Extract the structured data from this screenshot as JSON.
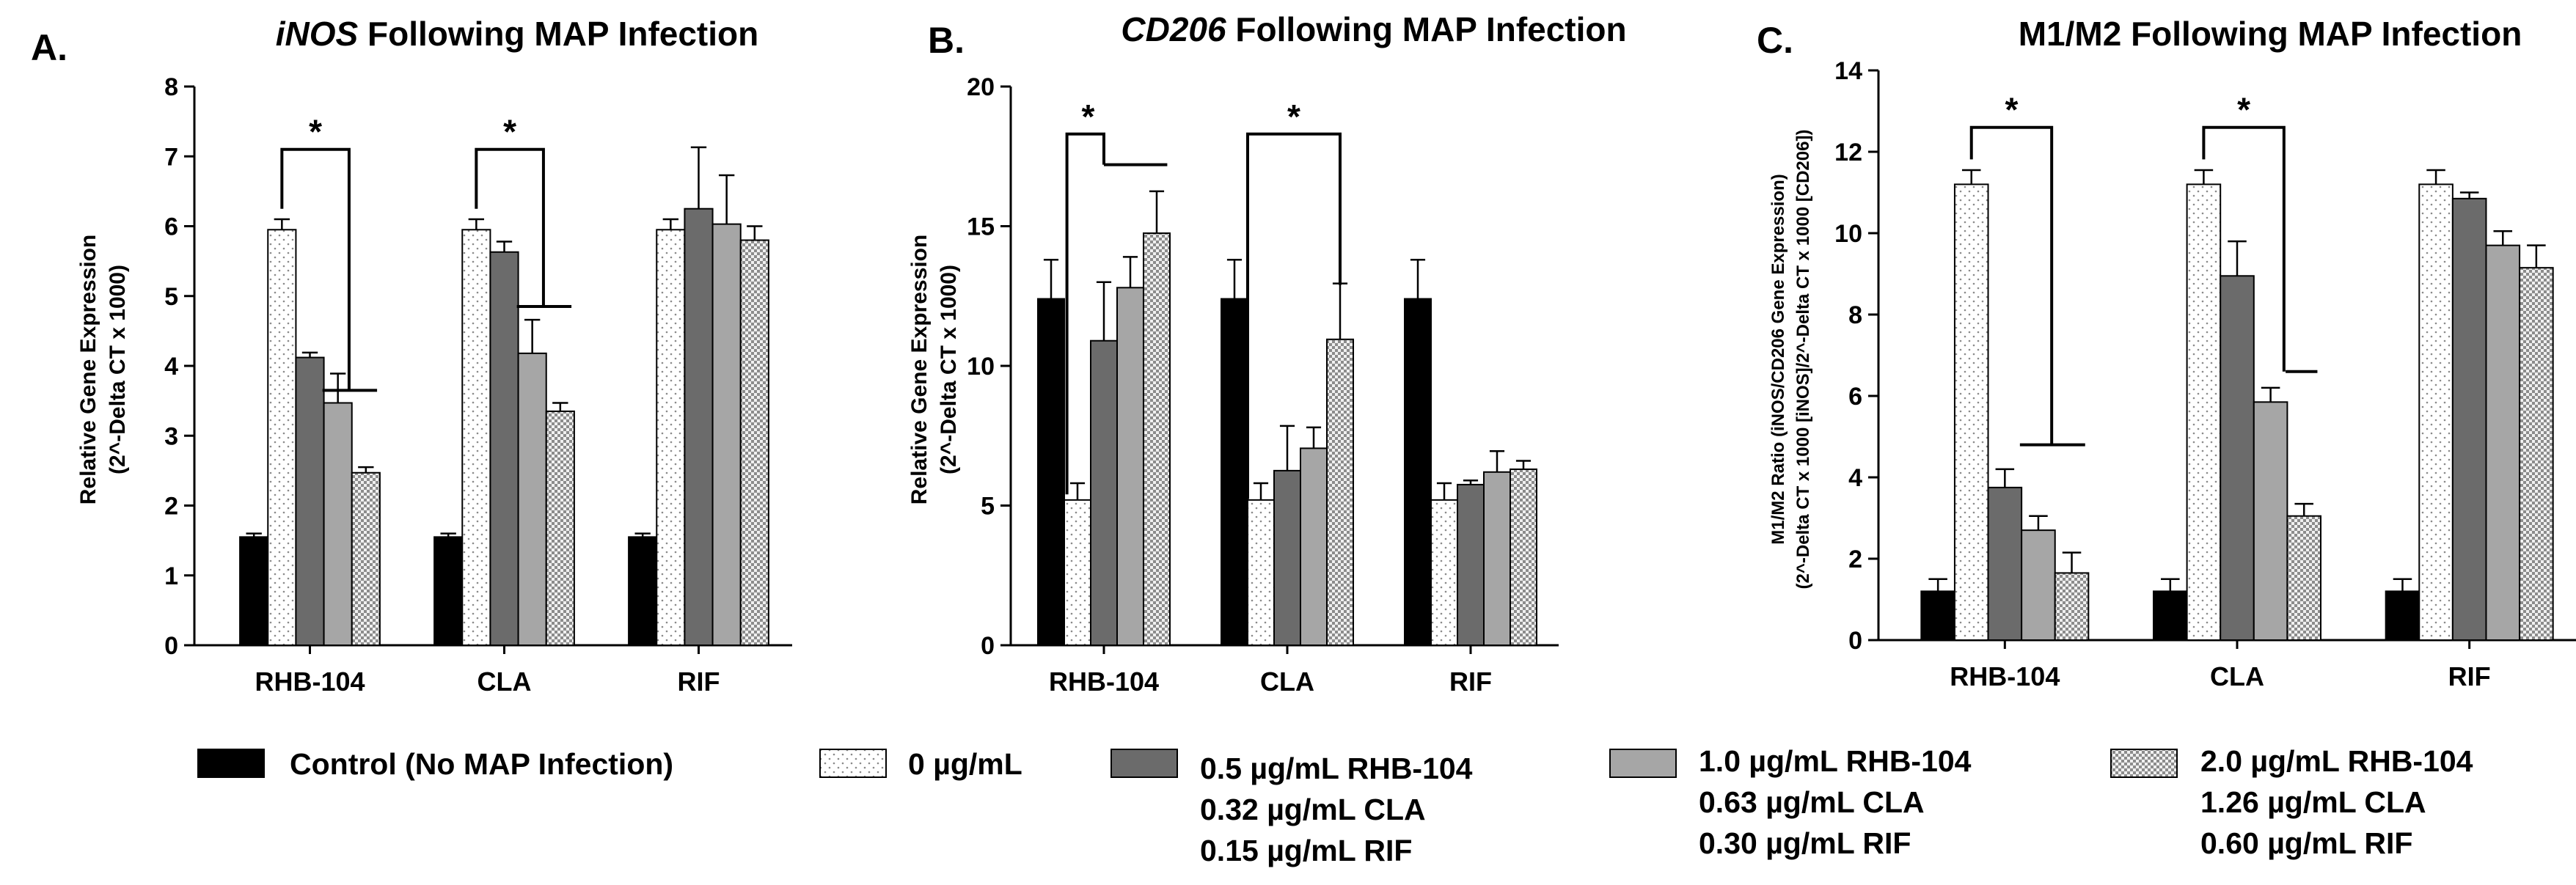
{
  "chart_data": [
    {
      "id": "A",
      "type": "bar",
      "letter": "A.",
      "title_italic": "iNOS",
      "title_rest": " Following MAP Infection",
      "ylabel": "Relative Gene Expression",
      "ylabel2": "(2^-Delta CT x 1000)",
      "ylim": [
        0,
        8
      ],
      "yticks": [
        "0",
        "1",
        "2",
        "3",
        "4",
        "5",
        "6",
        "7",
        "8"
      ],
      "categories": [
        "RHB-104",
        "CLA",
        "RIF"
      ],
      "series": [
        {
          "name": "Control (No MAP Infection)",
          "values": [
            1.55,
            1.55,
            1.55
          ],
          "errors": [
            0.05,
            0.05,
            0.05
          ]
        },
        {
          "name": "0 µg/mL",
          "values": [
            5.95,
            5.95,
            5.95
          ],
          "errors": [
            0.15,
            0.15,
            0.15
          ]
        },
        {
          "name": "0.5 µg/mL RHB-104 / 0.32 µg/mL CLA / 0.15 µg/mL RIF",
          "values": [
            4.12,
            5.63,
            6.25
          ],
          "errors": [
            0.07,
            0.15,
            0.88
          ]
        },
        {
          "name": "1.0 µg/mL RHB-104 / 0.63 µg/mL CLA / 0.30 µg/mL RIF",
          "values": [
            3.47,
            4.18,
            6.03
          ],
          "errors": [
            0.42,
            0.48,
            0.7
          ]
        },
        {
          "name": "2.0 µg/mL RHB-104 / 1.26 µg/mL CLA / 0.60 µg/mL RIF",
          "values": [
            2.47,
            3.35,
            5.8
          ],
          "errors": [
            0.08,
            0.12,
            0.2
          ]
        }
      ],
      "significance": [
        "*",
        "*"
      ]
    },
    {
      "id": "B",
      "type": "bar",
      "letter": "B.",
      "title_italic": "CD206",
      "title_rest": " Following MAP Infection",
      "ylabel": "Relative Gene Expression",
      "ylabel2": "(2^-Delta CT x 1000)",
      "ylim": [
        0,
        20
      ],
      "yticks": [
        "0",
        "5",
        "10",
        "15",
        "20"
      ],
      "categories": [
        "RHB-104",
        "CLA",
        "RIF"
      ],
      "series": [
        {
          "name": "Control (No MAP Infection)",
          "values": [
            12.4,
            12.4,
            12.4
          ],
          "errors": [
            1.4,
            1.4,
            1.4
          ]
        },
        {
          "name": "0 µg/mL",
          "values": [
            5.2,
            5.2,
            5.2
          ],
          "errors": [
            0.6,
            0.6,
            0.6
          ]
        },
        {
          "name": "0.5 µg/mL RHB-104 / 0.32 µg/mL CLA / 0.15 µg/mL RIF",
          "values": [
            10.9,
            6.25,
            5.75
          ],
          "errors": [
            2.1,
            1.6,
            0.15
          ]
        },
        {
          "name": "1.0 µg/mL RHB-104 / 0.63 µg/mL CLA / 0.30 µg/mL RIF",
          "values": [
            12.8,
            7.05,
            6.2
          ],
          "errors": [
            1.1,
            0.75,
            0.75
          ]
        },
        {
          "name": "2.0 µg/mL RHB-104 / 1.26 µg/mL CLA / 0.60 µg/mL RIF",
          "values": [
            14.75,
            10.95,
            6.3
          ],
          "errors": [
            1.5,
            2.0,
            0.3
          ]
        }
      ],
      "significance": [
        "*",
        "*"
      ]
    },
    {
      "id": "C",
      "type": "bar",
      "letter": "C.",
      "title_italic": "",
      "title_rest": "M1/M2 Following MAP Infection",
      "ylabel": "M1/M2 Ratio (iNOS/CD206 Gene Expression)",
      "ylabel2": "(2^-Delta CT x 1000 [iNOS]/2^-Delta CT x 1000 [CD206])",
      "ylim": [
        0,
        14
      ],
      "yticks": [
        "0",
        "2",
        "4",
        "6",
        "8",
        "10",
        "12",
        "14"
      ],
      "categories": [
        "RHB-104",
        "CLA",
        "RIF"
      ],
      "series": [
        {
          "name": "Control (No MAP Infection)",
          "values": [
            1.2,
            1.2,
            1.2
          ],
          "errors": [
            0.3,
            0.3,
            0.3
          ]
        },
        {
          "name": "0 µg/mL",
          "values": [
            11.2,
            11.2,
            11.2
          ],
          "errors": [
            0.35,
            0.35,
            0.35
          ]
        },
        {
          "name": "0.5 µg/mL RHB-104 / 0.32 µg/mL CLA / 0.15 µg/mL RIF",
          "values": [
            3.75,
            8.95,
            10.85
          ],
          "errors": [
            0.45,
            0.85,
            0.15
          ]
        },
        {
          "name": "1.0 µg/mL RHB-104 / 0.63 µg/mL CLA / 0.30 µg/mL RIF",
          "values": [
            2.7,
            5.85,
            9.7
          ],
          "errors": [
            0.35,
            0.35,
            0.35
          ]
        },
        {
          "name": "2.0 µg/mL RHB-104 / 1.26 µg/mL CLA / 0.60 µg/mL RIF",
          "values": [
            1.65,
            3.05,
            9.15
          ],
          "errors": [
            0.5,
            0.3,
            0.55
          ]
        }
      ],
      "significance": [
        "*",
        "*"
      ]
    }
  ],
  "legend": [
    {
      "lines": [
        "Control (No MAP Infection)"
      ]
    },
    {
      "lines": [
        "0 µg/mL"
      ]
    },
    {
      "lines": [
        "0.5 µg/mL RHB-104",
        "0.32 µg/mL CLA",
        "0.15 µg/mL RIF"
      ]
    },
    {
      "lines": [
        "1.0 µg/mL RHB-104",
        "0.63 µg/mL CLA",
        "0.30 µg/mL RIF"
      ]
    },
    {
      "lines": [
        "2.0 µg/mL RHB-104",
        "1.26 µg/mL CLA",
        "0.60 µg/mL RIF"
      ]
    }
  ],
  "series_fills": [
    "solid-black",
    "sparse-dots",
    "solid-dark-gray",
    "solid-light-gray",
    "checker"
  ],
  "colors": {
    "black": "#000000",
    "dark_gray": "#6b6b6b",
    "light_gray": "#a6a6a6",
    "white": "#ffffff"
  }
}
